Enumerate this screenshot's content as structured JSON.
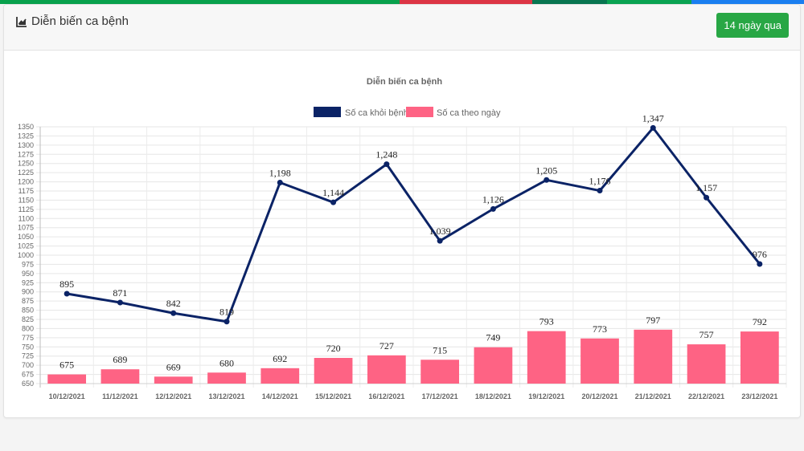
{
  "top_bar_colors": [
    "#08a14c",
    "#dc3545",
    "#087550",
    "#0aa352",
    "#1a7ef0"
  ],
  "top_bar_fractions": [
    0.497,
    0.165,
    0.093,
    0.105,
    0.14
  ],
  "header": {
    "title": "Diễn biến ca bệnh",
    "icon": "line-chart-icon",
    "period_button": "14 ngày qua"
  },
  "colors": {
    "recovered": "#0b2366",
    "daily": "#fe6384",
    "button": "#28a745"
  },
  "chart_data": {
    "type": "bar",
    "title": "Diễn biến ca bệnh",
    "xlabel": "",
    "ylabel": "",
    "ylim": [
      650,
      1350
    ],
    "ytick_step": 25,
    "grid": true,
    "legend_position": "top",
    "categories": [
      "10/12/2021",
      "11/12/2021",
      "12/12/2021",
      "13/12/2021",
      "14/12/2021",
      "15/12/2021",
      "16/12/2021",
      "17/12/2021",
      "18/12/2021",
      "19/12/2021",
      "20/12/2021",
      "21/12/2021",
      "22/12/2021",
      "23/12/2021"
    ],
    "series": [
      {
        "name": "Số ca khỏi bệnh",
        "type": "line",
        "color": "#0b2366",
        "values": [
          895,
          871,
          842,
          819,
          1198,
          1144,
          1248,
          1039,
          1126,
          1205,
          1176,
          1347,
          1157,
          976
        ],
        "labels": [
          "895",
          "871",
          "842",
          "819",
          "1,198",
          "1,144",
          "1,248",
          "1,039",
          "1,126",
          "1,205",
          "1,176",
          "1,347",
          "1,157",
          "976"
        ]
      },
      {
        "name": "Số ca theo ngày",
        "type": "bar",
        "color": "#fe6384",
        "values": [
          675,
          689,
          669,
          680,
          692,
          720,
          727,
          715,
          749,
          793,
          773,
          797,
          757,
          792
        ],
        "labels": [
          "675",
          "689",
          "669",
          "680",
          "692",
          "720",
          "727",
          "715",
          "749",
          "793",
          "773",
          "797",
          "757",
          "792"
        ]
      }
    ]
  }
}
